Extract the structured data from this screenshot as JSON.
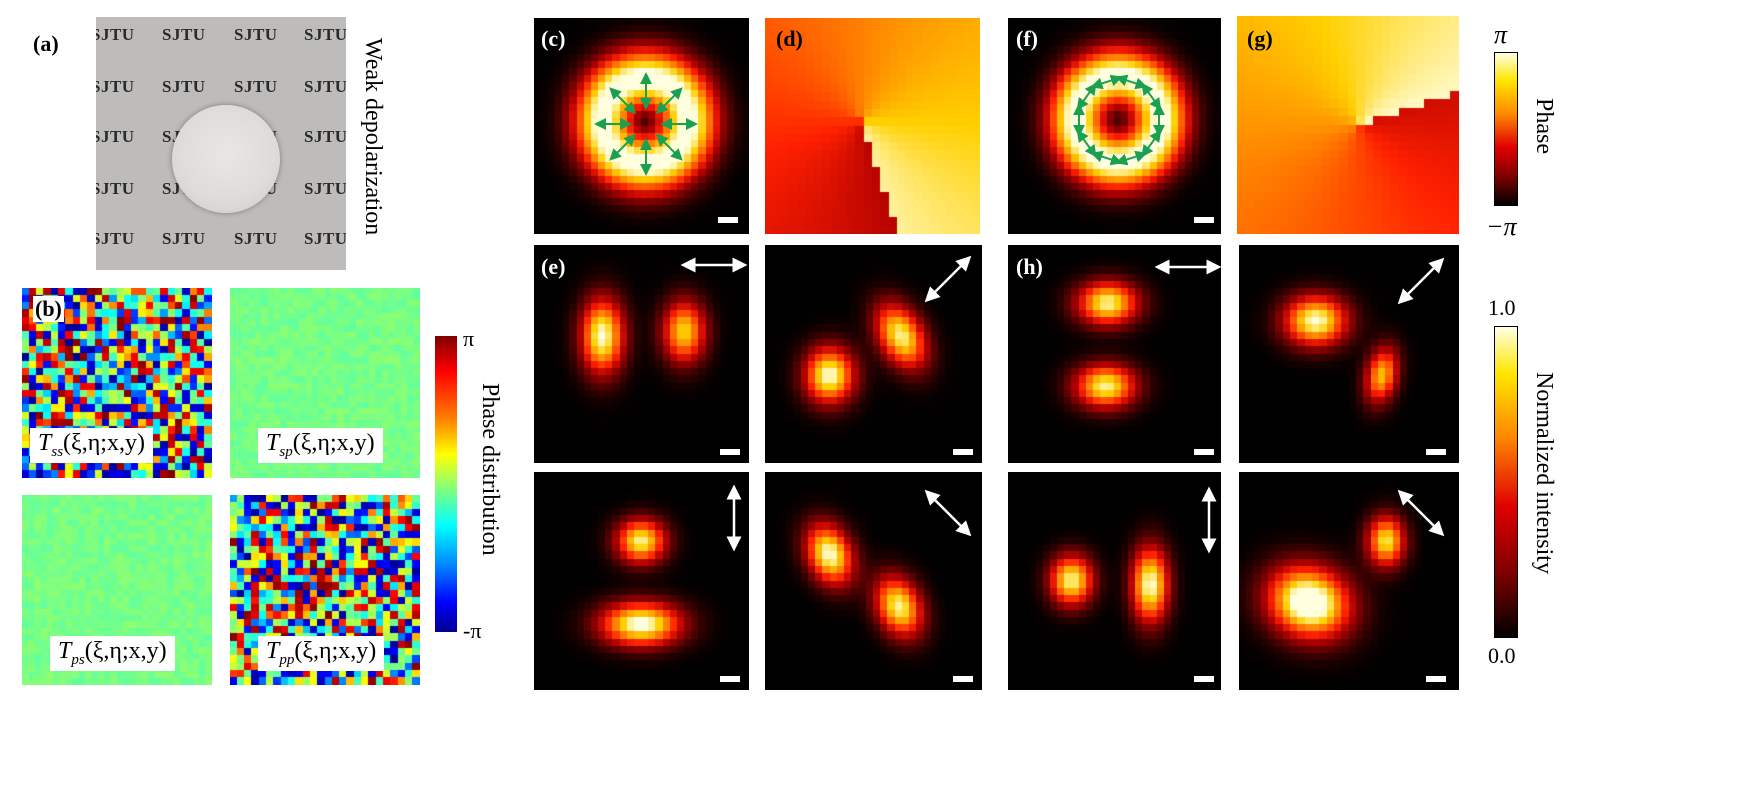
{
  "panel_labels": {
    "a": "(a)",
    "b": "(b)",
    "c": "(c)",
    "d": "(d)",
    "e": "(e)",
    "f": "(f)",
    "g": "(g)",
    "h": "(h)"
  },
  "panel_a": {
    "watermark_text": "SJTU",
    "side_label": "Weak depolarization"
  },
  "panel_b": {
    "formulas": {
      "tss": {
        "T": "T",
        "sub": "ss",
        "args": "(ξ,η;x,y)"
      },
      "tsp": {
        "T": "T",
        "sub": "sp",
        "args": "(ξ,η;x,y)"
      },
      "tps": {
        "T": "T",
        "sub": "ps",
        "args": "(ξ,η;x,y)"
      },
      "tpp": {
        "T": "T",
        "sub": "pp",
        "args": "(ξ,η;x,y)"
      }
    },
    "colorbar": {
      "top": "π",
      "bottom": "-π",
      "label": "Phase distribution"
    }
  },
  "phase_colorbar": {
    "top": "π",
    "bottom": "−π",
    "label": "Phase"
  },
  "intensity_colorbar": {
    "top": "1.0",
    "bottom": "0.0",
    "label": "Normalized intensity"
  },
  "colors": {
    "hot_map": [
      "#000000",
      "#5a0000",
      "#b00000",
      "#ff2000",
      "#ff7a00",
      "#ffd000",
      "#ffffe0"
    ],
    "jet_map": [
      "#00008f",
      "#0000ff",
      "#00ffff",
      "#7fff7f",
      "#ffff00",
      "#ff0000",
      "#7f0000"
    ],
    "arrow_green": "#1aa050"
  },
  "analyzer_orientations": {
    "e_top": "horizontal",
    "e_bottom": "vertical",
    "d2_top": "diagonal-45",
    "d2_bottom": "diagonal-135",
    "h_top": "horizontal",
    "h_bottom": "vertical",
    "g2_top": "diagonal-45",
    "g2_bottom": "diagonal-135"
  }
}
